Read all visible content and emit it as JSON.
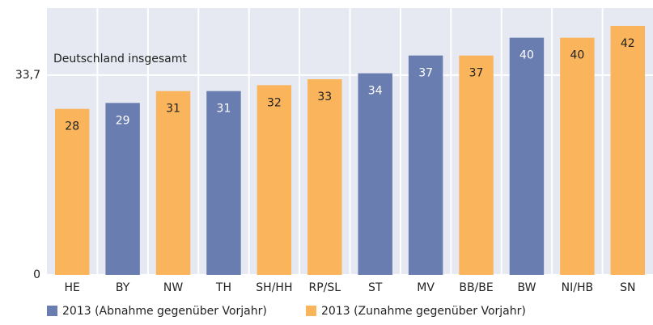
{
  "chart_data": {
    "type": "bar",
    "categories": [
      "HE",
      "BY",
      "NW",
      "TH",
      "SH/HH",
      "RP/SL",
      "ST",
      "MV",
      "BB/BE",
      "BW",
      "NI/HB",
      "SN"
    ],
    "series": [
      {
        "name": "2013 (Abnahme gegenüber Vorjahr)",
        "color": "#6a7db1",
        "label_color": "#ffffff",
        "values": [
          null,
          29,
          null,
          31,
          null,
          null,
          34,
          37,
          null,
          40,
          null,
          null
        ]
      },
      {
        "name": "2013 (Zunahme gegenüber Vorjahr)",
        "color": "#f9b45c",
        "label_color": "#222222",
        "values": [
          28,
          null,
          31,
          null,
          32,
          33,
          null,
          null,
          37,
          null,
          40,
          42
        ]
      }
    ],
    "ylim": [
      0,
      45
    ],
    "yticks": [
      0,
      {
        "value": 33.7,
        "label": "33,7"
      }
    ],
    "grid": true,
    "annotation": "Deutschland insgesamt"
  }
}
